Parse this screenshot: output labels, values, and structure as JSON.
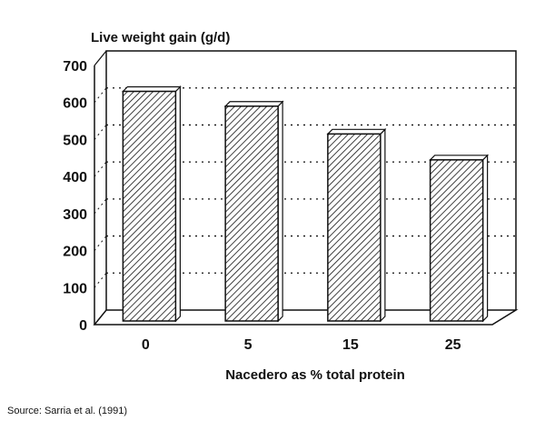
{
  "chart_data": {
    "type": "bar",
    "ylabel": "Live weight gain (g/d)",
    "xlabel": "Nacedero as % total protein",
    "categories": [
      "0",
      "5",
      "15",
      "25"
    ],
    "values": [
      630,
      590,
      515,
      445
    ],
    "ylim": [
      0,
      700
    ],
    "yticks": [
      "0",
      "100",
      "200",
      "300",
      "400",
      "500",
      "600",
      "700"
    ],
    "grid": true,
    "style": "3d hatched bars",
    "source": "Source: Sarria et al. (1991)"
  }
}
